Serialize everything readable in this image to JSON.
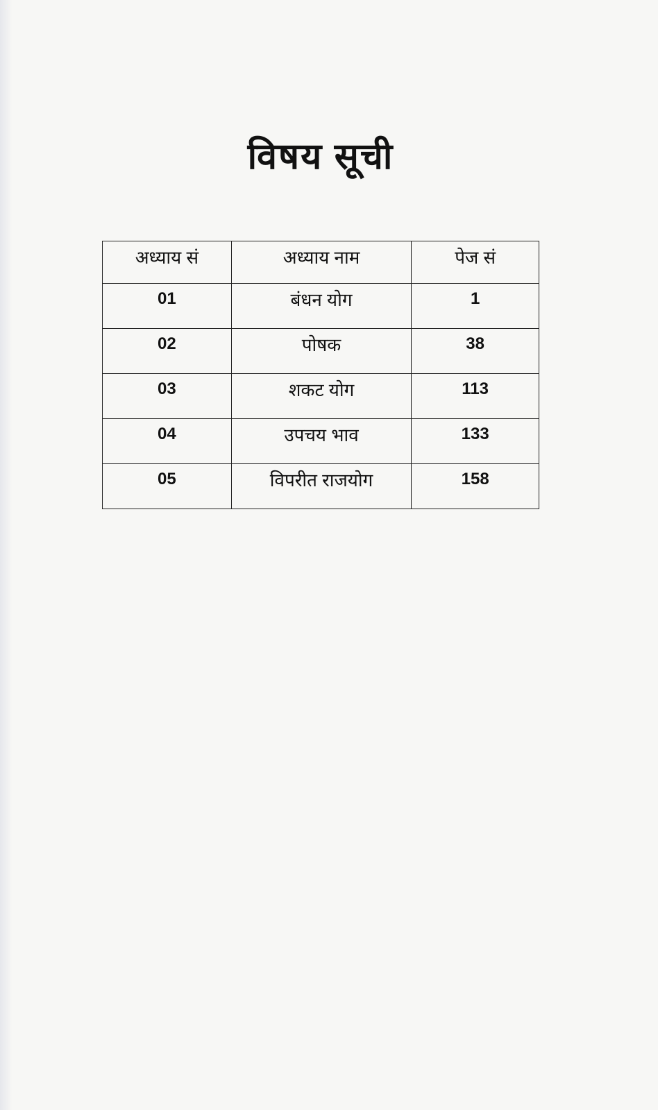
{
  "title": "विषय सूची",
  "table": {
    "headers": [
      "अध्याय सं",
      "अध्याय नाम",
      "पेज सं"
    ],
    "rows": [
      {
        "chapter_no": "01",
        "chapter_name": "बंधन योग",
        "page_no": "1"
      },
      {
        "chapter_no": "02",
        "chapter_name": "पोषक",
        "page_no": "38"
      },
      {
        "chapter_no": "03",
        "chapter_name": "शकट योग",
        "page_no": "113"
      },
      {
        "chapter_no": "04",
        "chapter_name": "उपचय भाव",
        "page_no": "133"
      },
      {
        "chapter_no": "05",
        "chapter_name": "विपरीत राजयोग",
        "page_no": "158"
      }
    ]
  }
}
